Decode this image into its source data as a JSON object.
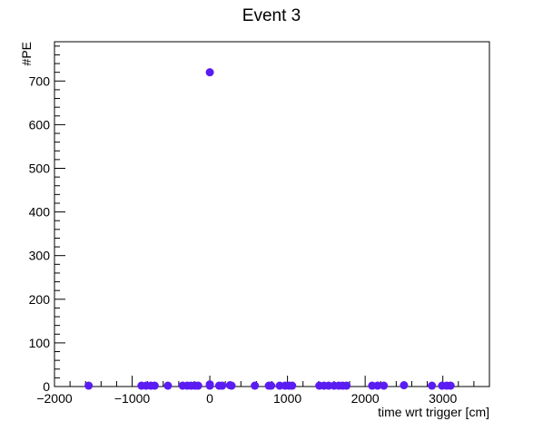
{
  "chart_data": {
    "type": "scatter",
    "title": "Event 3",
    "xlabel": "time wrt trigger [cm]",
    "ylabel": "#PE",
    "xlim": [
      -2000,
      3600
    ],
    "ylim": [
      0,
      790
    ],
    "grid": false,
    "x_ticks": [
      -2000,
      -1000,
      0,
      1000,
      2000,
      3000
    ],
    "x_tick_labels": [
      "−2000",
      "−1000",
      "0",
      "1000",
      "2000",
      "3000"
    ],
    "y_ticks": [
      0,
      100,
      200,
      300,
      400,
      500,
      600,
      700
    ],
    "y_tick_labels": [
      "0",
      "100",
      "200",
      "300",
      "400",
      "500",
      "600",
      "700"
    ],
    "marker_color": "#5a1cf2",
    "points": [
      {
        "x": -1560,
        "y": 2
      },
      {
        "x": -880,
        "y": 2
      },
      {
        "x": -820,
        "y": 2
      },
      {
        "x": -760,
        "y": 2
      },
      {
        "x": -710,
        "y": 2
      },
      {
        "x": -540,
        "y": 2
      },
      {
        "x": -350,
        "y": 2
      },
      {
        "x": -290,
        "y": 2
      },
      {
        "x": -240,
        "y": 2
      },
      {
        "x": -190,
        "y": 2
      },
      {
        "x": -150,
        "y": 2
      },
      {
        "x": 0,
        "y": 720
      },
      {
        "x": 0,
        "y": 5
      },
      {
        "x": 0,
        "y": 2
      },
      {
        "x": 120,
        "y": 2
      },
      {
        "x": 160,
        "y": 2
      },
      {
        "x": 260,
        "y": 3
      },
      {
        "x": 280,
        "y": 2
      },
      {
        "x": 580,
        "y": 2
      },
      {
        "x": 760,
        "y": 2
      },
      {
        "x": 790,
        "y": 2
      },
      {
        "x": 900,
        "y": 2
      },
      {
        "x": 970,
        "y": 2
      },
      {
        "x": 1020,
        "y": 2
      },
      {
        "x": 1060,
        "y": 2
      },
      {
        "x": 1410,
        "y": 2
      },
      {
        "x": 1470,
        "y": 2
      },
      {
        "x": 1530,
        "y": 2
      },
      {
        "x": 1600,
        "y": 2
      },
      {
        "x": 1660,
        "y": 2
      },
      {
        "x": 1710,
        "y": 2
      },
      {
        "x": 1760,
        "y": 2
      },
      {
        "x": 2090,
        "y": 2
      },
      {
        "x": 2160,
        "y": 2
      },
      {
        "x": 2240,
        "y": 2
      },
      {
        "x": 2500,
        "y": 3
      },
      {
        "x": 2860,
        "y": 2
      },
      {
        "x": 2990,
        "y": 2
      },
      {
        "x": 3050,
        "y": 2
      },
      {
        "x": 3100,
        "y": 2
      }
    ]
  }
}
